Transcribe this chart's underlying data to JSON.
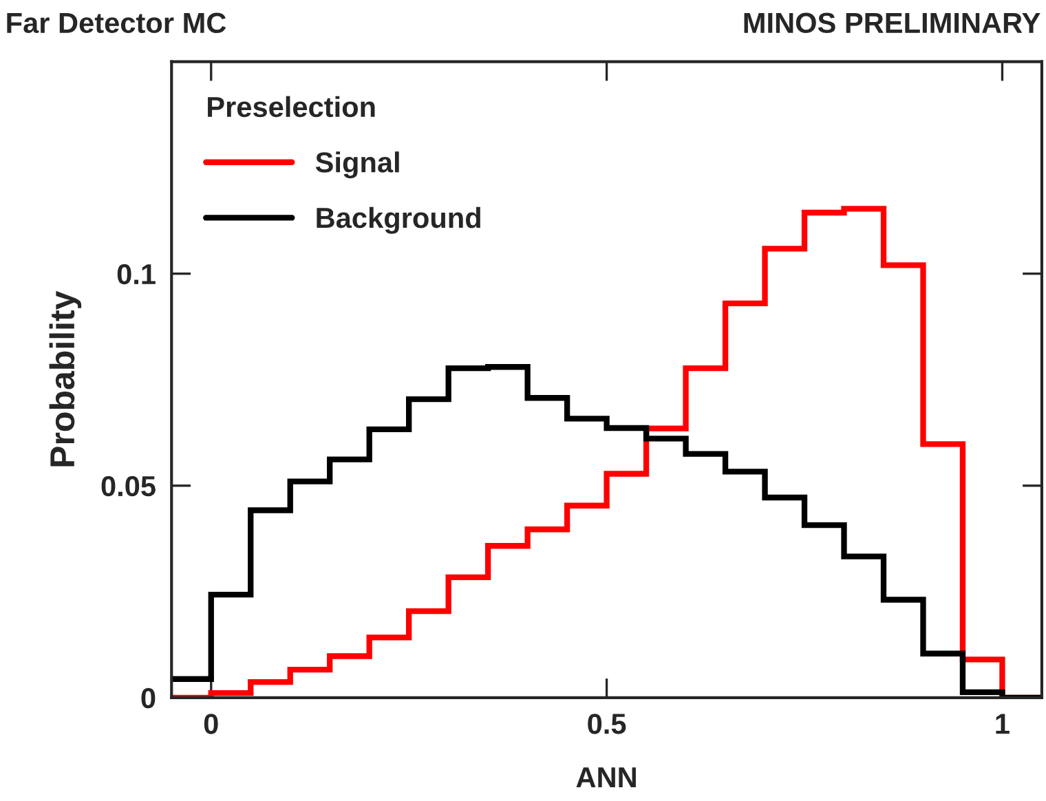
{
  "chart_data": {
    "type": "histogram",
    "xlabel": "ANN",
    "ylabel": "Probability",
    "legend_title": "Preselection",
    "annotations": [
      "Far Detector MC",
      "MINOS PRELIMINARY"
    ],
    "bins": [
      -0.05,
      0,
      0.05,
      0.1,
      0.15,
      0.2,
      0.25,
      0.3,
      0.35,
      0.4,
      0.45,
      0.5,
      0.55,
      0.6,
      0.65,
      0.7,
      0.75,
      0.8,
      0.85,
      0.9,
      0.95,
      1,
      1.05
    ],
    "series": [
      {
        "name": "Signal",
        "color": "#ff0000",
        "values": [
          0,
          0.0011,
          0.0037,
          0.0066,
          0.0098,
          0.0142,
          0.0204,
          0.0284,
          0.0358,
          0.0397,
          0.0453,
          0.0528,
          0.0635,
          0.0777,
          0.093,
          0.1059,
          0.1144,
          0.1153,
          0.102,
          0.0598,
          0.009,
          0
        ]
      },
      {
        "name": "Background",
        "color": "#000000",
        "values": [
          0.0044,
          0.0243,
          0.0442,
          0.051,
          0.0562,
          0.0633,
          0.0704,
          0.0777,
          0.078,
          0.0707,
          0.0658,
          0.0636,
          0.0611,
          0.0575,
          0.0533,
          0.0472,
          0.0407,
          0.0333,
          0.0231,
          0.0104,
          0.0013,
          0
        ]
      }
    ],
    "xlim": [
      -0.05,
      1.05
    ],
    "ylim": [
      0,
      0.15
    ],
    "xticks": [
      0,
      0.5,
      1
    ],
    "yticks": [
      0,
      0.05,
      0.1
    ],
    "grid": false,
    "legend": "top left"
  }
}
